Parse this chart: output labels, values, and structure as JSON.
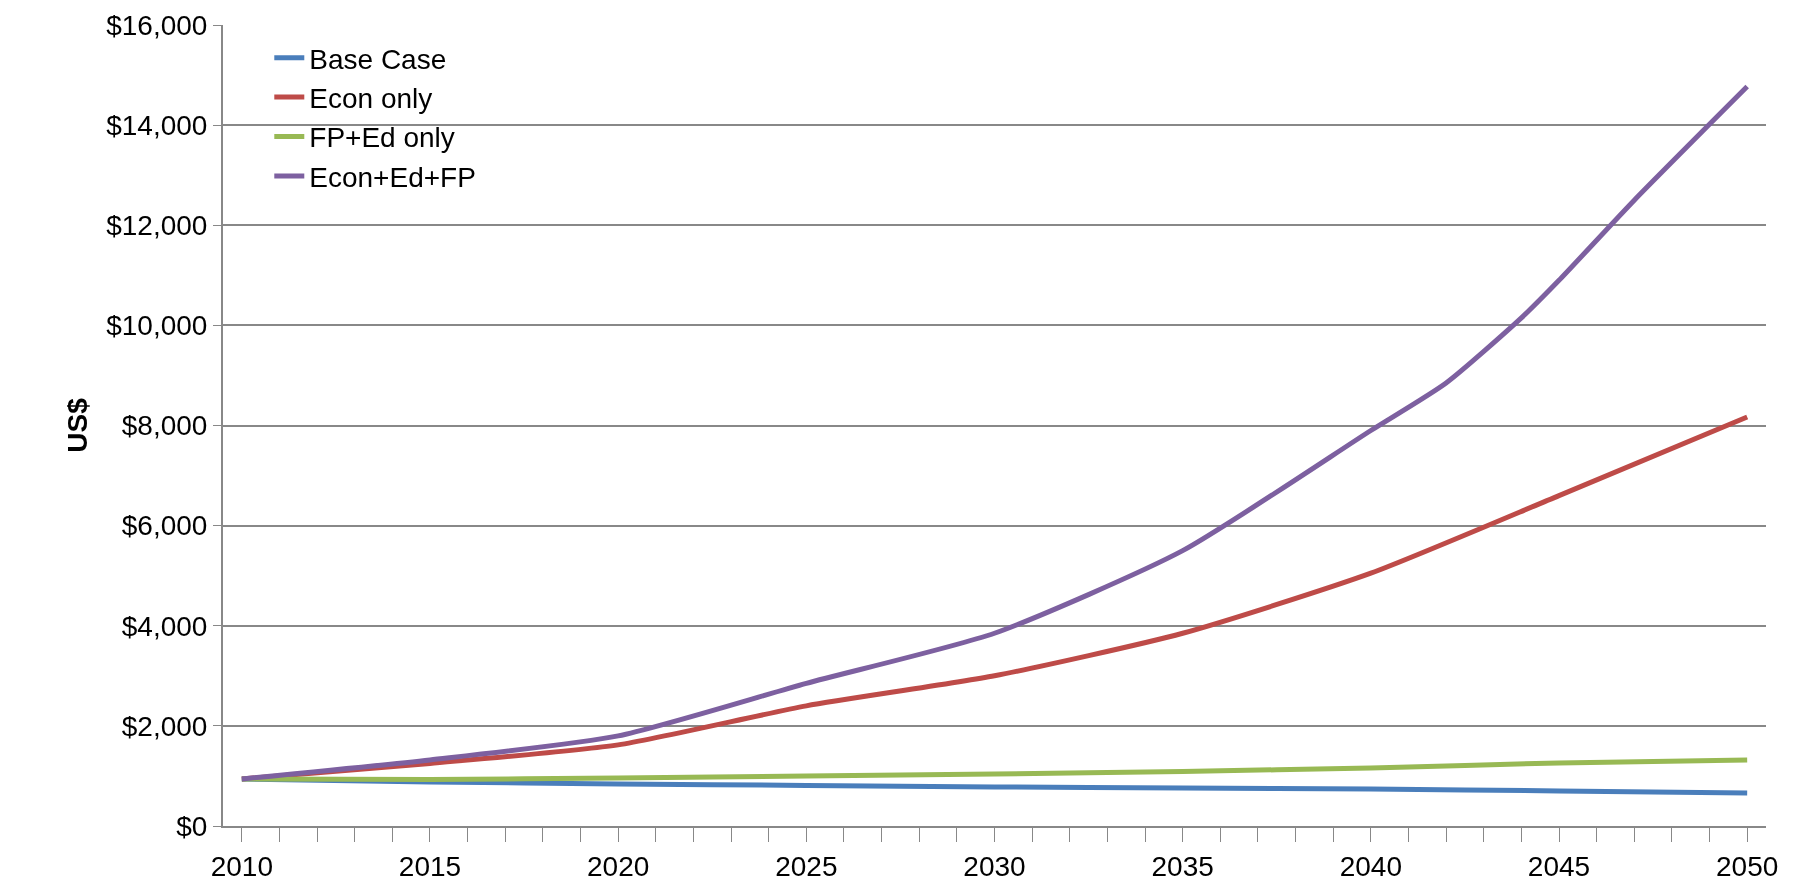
{
  "chart_data": {
    "type": "line",
    "ylabel": "US$",
    "x": [
      2010,
      2015,
      2020,
      2025,
      2030,
      2035,
      2040,
      2045,
      2050
    ],
    "series": [
      {
        "name": "Base Case",
        "color": "#4a7ebb",
        "values": [
          940,
          880,
          840,
          810,
          780,
          760,
          740,
          700,
          660
        ]
      },
      {
        "name": "Econ only",
        "color": "#be4b48",
        "values": [
          940,
          1250,
          1620,
          2400,
          3000,
          3850,
          5050,
          6600,
          8170
        ]
      },
      {
        "name": "FP+Ed only",
        "color": "#98b954",
        "values": [
          940,
          930,
          960,
          1000,
          1040,
          1090,
          1160,
          1260,
          1320
        ]
      },
      {
        "name": "Econ+Ed+FP",
        "color": "#7d60a0",
        "x": [
          2010,
          2015,
          2020,
          2025,
          2030,
          2035,
          2040,
          2042,
          2044,
          2045,
          2047,
          2050
        ],
        "values": [
          940,
          1320,
          1800,
          2850,
          3850,
          5500,
          7900,
          8850,
          10150,
          10900,
          12500,
          14770
        ]
      }
    ],
    "xlim": [
      2009.5,
      2050.5
    ],
    "xticks": [
      2010,
      2015,
      2020,
      2025,
      2030,
      2035,
      2040,
      2045,
      2050
    ],
    "ylim": [
      0,
      16000
    ],
    "yticks": [
      {
        "value": 0,
        "label": "$0"
      },
      {
        "value": 2000,
        "label": "$2,000"
      },
      {
        "value": 4000,
        "label": "$4,000"
      },
      {
        "value": 6000,
        "label": "$6,000"
      },
      {
        "value": 8000,
        "label": "$8,000"
      },
      {
        "value": 10000,
        "label": "$10,000"
      },
      {
        "value": 12000,
        "label": "$12,000"
      },
      {
        "value": 14000,
        "label": "$14,000"
      },
      {
        "value": 16000,
        "label": "$16,000"
      }
    ],
    "grid": "y",
    "legend": "top left",
    "marker": "none",
    "line_style": "solid"
  }
}
